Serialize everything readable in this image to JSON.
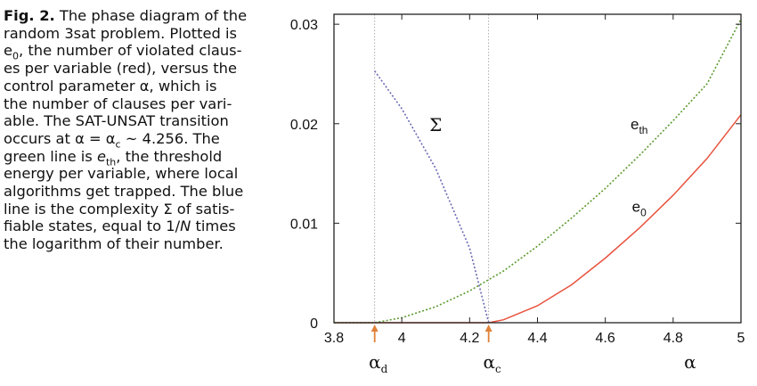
{
  "caption": {
    "fig_label": "Fig. 2.",
    "l1": " The phase diagram of the",
    "l2": "random 3sat problem. Plotted is",
    "l3a": "e",
    "l3sub": "0",
    "l3b": ", the number of violated claus-",
    "l4": "es per variable (red), versus the",
    "l5": "control parameter α, which is",
    "l6": "the number of clauses per vari-",
    "l7": "able. The SAT-UNSAT transition",
    "l8a": "occurs at α = α",
    "l8sub": "c",
    "l8b": " ∼ 4.256. The",
    "l9a": "green line is ",
    "l9it": "e",
    "l9sub": "th",
    "l9b": ", the threshold",
    "l10": "energy per variable, where local",
    "l11": "algorithms get trapped. The blue",
    "l12": "line is the complexity Σ of satis-",
    "l13a": "fiable states, equal to 1/",
    "l13it": "N",
    "l13b": " times",
    "l14": "the logarithm of their number."
  },
  "chart_data": {
    "type": "line",
    "title": "",
    "xlabel": "α",
    "ylabel": "",
    "xlim": [
      3.8,
      5.0
    ],
    "ylim": [
      0,
      0.031
    ],
    "x_ticks": [
      3.8,
      4.0,
      4.2,
      4.4,
      4.6,
      4.8,
      5.0
    ],
    "x_tick_labels": [
      "3.8",
      "4",
      "4.2",
      "4.4",
      "4.6",
      "4.8",
      "5"
    ],
    "y_ticks": [
      0,
      0.01,
      0.02,
      0.03
    ],
    "y_tick_labels": [
      "0",
      "0.01",
      "0.02",
      "0.03"
    ],
    "grid": false,
    "legend": "none",
    "series": [
      {
        "name": "e0",
        "color": "#e8533f",
        "style": "solid",
        "x": [
          3.8,
          4.256,
          4.3,
          4.4,
          4.5,
          4.6,
          4.7,
          4.8,
          4.9,
          5.0
        ],
        "y": [
          0,
          0,
          0.0003,
          0.0017,
          0.0038,
          0.0065,
          0.0095,
          0.0128,
          0.0165,
          0.0209
        ]
      },
      {
        "name": "eth",
        "color": "#5b9a2e",
        "style": "dotted",
        "x": [
          3.8,
          3.92,
          4.0,
          4.1,
          4.2,
          4.3,
          4.4,
          4.5,
          4.6,
          4.7,
          4.8,
          4.9,
          5.0
        ],
        "y": [
          0,
          0,
          0.0005,
          0.0016,
          0.0032,
          0.0052,
          0.0077,
          0.0105,
          0.0135,
          0.0168,
          0.0203,
          0.024,
          0.0305
        ]
      },
      {
        "name": "Σ",
        "color": "#6a6ab4",
        "style": "dotted",
        "x": [
          3.92,
          4.0,
          4.1,
          4.2,
          4.256
        ],
        "y": [
          0.0253,
          0.0215,
          0.0155,
          0.0075,
          0
        ]
      }
    ],
    "annotations": {
      "sigma": {
        "text": "Σ",
        "x": 4.1,
        "y": 0.02
      },
      "eth": {
        "base": "e",
        "sub": "th",
        "x": 4.7,
        "y": 0.02
      },
      "e0": {
        "base": "e",
        "sub": "0",
        "x": 4.7,
        "y": 0.0117
      },
      "alpha_d": {
        "base": "α",
        "sub": "d",
        "x": 3.92
      },
      "alpha_c": {
        "base": "α",
        "sub": "c",
        "x": 4.256
      },
      "alpha_axis": {
        "text": "α",
        "x": 4.85
      }
    },
    "markers": {
      "alpha_d_line_x": 3.92,
      "alpha_c_line_x": 4.256,
      "arrow_color": "#e0823a",
      "vline_color": "#999999"
    }
  }
}
